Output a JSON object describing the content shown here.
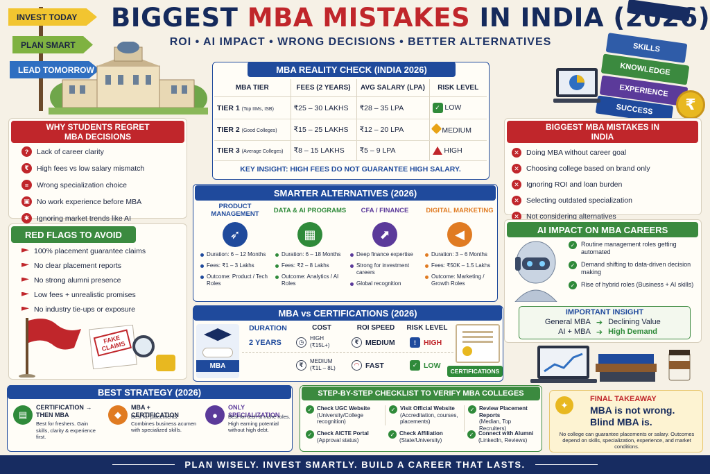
{
  "header": {
    "title_part1": "BIGGEST ",
    "title_part2": "MBA MISTAKES",
    "title_part3": " IN INDIA (2026)",
    "subtitle": "ROI • AI IMPACT • WRONG DECISIONS • BETTER ALTERNATIVES"
  },
  "signs": [
    "INVEST TODAY",
    "PLAN SMART",
    "LEAD TOMORROW"
  ],
  "books": [
    "SKILLS",
    "KNOWLEDGE",
    "EXPERIENCE",
    "SUCCESS"
  ],
  "reality_check": {
    "title": "MBA REALITY CHECK (INDIA 2026)",
    "headers": [
      "MBA TIER",
      "FEES (2 YEARS)",
      "AVG SALARY (LPA)",
      "RISK LEVEL"
    ],
    "rows": [
      {
        "tier": "TIER 1",
        "note": "(Top IIMs, ISB)",
        "fees": "₹25 – 30 LAKHS",
        "salary": "₹28 – 35 LPA",
        "risk": "LOW",
        "risk_color": "#2f8a3a"
      },
      {
        "tier": "TIER 2",
        "note": "(Good Colleges)",
        "fees": "₹15 – 25 LAKHS",
        "salary": "₹12 – 20 LPA",
        "risk": "MEDIUM",
        "risk_color": "#e8a317"
      },
      {
        "tier": "TIER 3",
        "note": "(Average Colleges)",
        "fees": "₹8 – 15 LAKHS",
        "salary": "₹5 – 9 LPA",
        "risk": "HIGH",
        "risk_color": "#c0262b"
      }
    ],
    "insight": "KEY INSIGHT: HIGH FEES DO NOT GUARANTEE HIGH SALARY."
  },
  "regret": {
    "title": "WHY STUDENTS REGRET MBA DECISIONS",
    "items": [
      "Lack of career clarity",
      "High fees vs low salary mismatch",
      "Wrong specialization choice",
      "No work experience before MBA",
      "Ignoring market trends like AI"
    ]
  },
  "red_flags": {
    "title": "RED FLAGS TO AVOID",
    "items": [
      "100% placement guarantee claims",
      "No clear placement reports",
      "No strong alumni presence",
      "Low fees + unrealistic promises",
      "No industry tie-ups or exposure"
    ],
    "stamp": "FAKE CLAIMS"
  },
  "mistakes": {
    "title": "BIGGEST MBA MISTAKES IN INDIA",
    "items": [
      "Doing MBA without career goal",
      "Choosing college based on brand only",
      "Ignoring ROI and loan burden",
      "Selecting outdated specialization",
      "Not considering alternatives"
    ]
  },
  "alternatives": {
    "title": "SMARTER ALTERNATIVES (2026)",
    "items": [
      {
        "name": "PRODUCT MANAGEMENT",
        "icon": "rocket-icon",
        "color": "#1f4a9c",
        "lines": [
          "Duration: 6 – 12 Months",
          "Fees: ₹1 – 3 Lakhs",
          "Outcome: Product / Tech Roles"
        ]
      },
      {
        "name": "DATA & AI PROGRAMS",
        "icon": "chip-icon",
        "color": "#2f8a3a",
        "lines": [
          "Duration: 6 – 18 Months",
          "Fees: ₹2 – 8 Lakhs",
          "Outcome: Analytics / AI Roles"
        ]
      },
      {
        "name": "CFA / FINANCE",
        "icon": "growth-chart-icon",
        "color": "#5b3a9a",
        "lines": [
          "Deep finance expertise",
          "Strong for investment careers",
          "Global recognition"
        ]
      },
      {
        "name": "DIGITAL MARKETING",
        "icon": "megaphone-icon",
        "color": "#e07b22",
        "lines": [
          "Duration: 3 – 6 Months",
          "Fees: ₹50K – 1.5 Lakhs",
          "Outcome: Marketing / Growth Roles"
        ]
      }
    ]
  },
  "ai_impact": {
    "title": "AI IMPACT ON MBA CAREERS",
    "items": [
      "Routine management roles getting automated",
      "Demand shifting to data-driven decision making",
      "Rise of hybrid roles (Business + AI skills)"
    ],
    "insight_title": "IMPORTANT INSIGHT",
    "rows": [
      {
        "left": "General MBA",
        "right": "Declining Value"
      },
      {
        "left": "AI + MBA",
        "right": "High Demand"
      }
    ]
  },
  "vs": {
    "title": "MBA vs CERTIFICATIONS (2026)",
    "headers": [
      "DURATION",
      "COST",
      "ROI SPEED",
      "RISK LEVEL"
    ],
    "mba_label": "MBA",
    "cert_label": "CERTIFICATIONS",
    "duration": "2 YEARS",
    "mba_cost": "HIGH (₹15L+)",
    "mba_roi": "MEDIUM",
    "mba_risk": "HIGH",
    "cert_cost": "MEDIUM (₹1L – 8L)",
    "cert_roi": "FAST",
    "cert_risk": "LOW"
  },
  "strategy": {
    "title": "BEST STRATEGY (2026)",
    "items": [
      {
        "name": "CERTIFICATION → THEN MBA",
        "desc": "Best for freshers. Gain skills, clarity & experience first.",
        "color": "#2f8a3a",
        "icon": "certificate-icon"
      },
      {
        "name": "MBA + CERTIFICATION",
        "desc": "Best for placements. Combines business acumen with specialized skills.",
        "color": "#e07b22",
        "icon": "graduation-cap-icon"
      },
      {
        "name": "ONLY SPECIALIZATION",
        "desc": "Best for tech & niche roles. High earning potential without high debt.",
        "color": "#5b3a9a",
        "icon": "person-icon"
      }
    ]
  },
  "checklist": {
    "title": "STEP-BY-STEP CHECKLIST TO VERIFY MBA COLLEGES",
    "items": [
      {
        "name": "Check UGC Website",
        "desc": "(University/College recognition)"
      },
      {
        "name": "Check AICTE Portal",
        "desc": "(Approval status)"
      },
      {
        "name": "Visit Official Website",
        "desc": "(Accreditation, courses, placements)"
      },
      {
        "name": "Check Affiliation",
        "desc": "(State/University)"
      },
      {
        "name": "Review Placement Reports",
        "desc": "(Median, Top Recruiters)"
      },
      {
        "name": "Connect with Alumni",
        "desc": "(LinkedIn, Reviews)"
      }
    ]
  },
  "final": {
    "title": "FINAL TAKEAWAY",
    "line1": "MBA is not wrong.",
    "line2": "Blind MBA is.",
    "note": "No college can guarantee placements or salary. Outcomes depend on skills, specialization, experience, and market conditions."
  },
  "footer": "PLAN WISELY. INVEST SMARTLY. BUILD A CAREER THAT LASTS.",
  "colors": {
    "navy": "#172c61",
    "red": "#c0262b",
    "green": "#2f8a3a",
    "purple": "#5b3a9a",
    "orange": "#e07b22"
  }
}
